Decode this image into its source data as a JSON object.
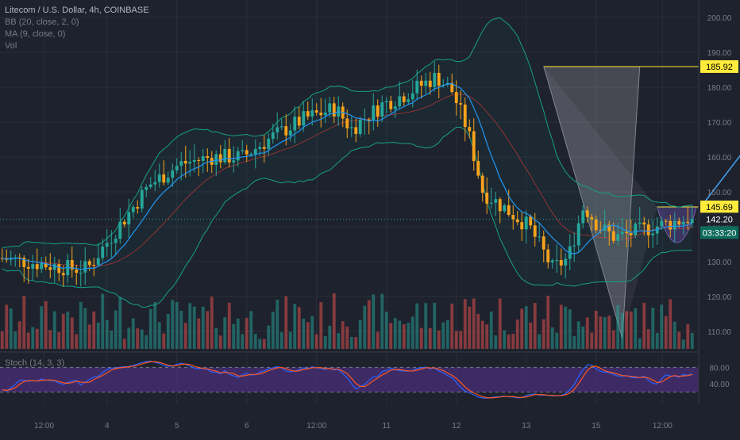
{
  "header": {
    "title": "Litecom / U.S. Dollar, 4h, COINBASE",
    "indicators": [
      "BB (20, close, 2, 0)",
      "MA (9, close, 0)",
      "Vol"
    ],
    "stoch_label": "Stoch (14, 3, 3)"
  },
  "colors": {
    "background": "#1e222d",
    "up": "#26a69a",
    "down": "#f7a21b",
    "bb": "#16a085",
    "ma": "#2196f3",
    "ema": "#e53935",
    "cup": "#5b3a8a",
    "yellow": "#ffeb3b",
    "stoch_k": "#2962ff",
    "stoch_d": "#ff5722",
    "stoch_bg": "#4a2f7a",
    "projection": "#42a5f5"
  },
  "chart_data": [
    {
      "type": "candlestick",
      "title": "Litecom / U.S. Dollar, 4h, COINBASE",
      "x_ticks": [
        {
          "i": 12,
          "label": "12:00"
        },
        {
          "i": 30,
          "label": "4"
        },
        {
          "i": 50,
          "label": "5"
        },
        {
          "i": 70,
          "label": "6"
        },
        {
          "i": 90,
          "label": "12:00"
        },
        {
          "i": 110,
          "label": "11"
        },
        {
          "i": 130,
          "label": "12"
        },
        {
          "i": 150,
          "label": "13"
        },
        {
          "i": 170,
          "label": "15"
        },
        {
          "i": 189,
          "label": "12:00"
        }
      ],
      "y_ticks": [
        {
          "v": 200,
          "label": "200.00"
        },
        {
          "v": 190,
          "label": "190.00"
        },
        {
          "v": 180,
          "label": "180.00"
        },
        {
          "v": 170,
          "label": "170.00"
        },
        {
          "v": 160,
          "label": "160.00"
        },
        {
          "v": 150,
          "label": "150.00"
        },
        {
          "v": 140,
          "label": "140.00"
        },
        {
          "v": 130,
          "label": "130.00"
        },
        {
          "v": 120,
          "label": "120.00"
        },
        {
          "v": 110,
          "label": "110.00"
        }
      ],
      "price_labels": [
        {
          "value": 185.92,
          "label": "185.92",
          "style": "yellow"
        },
        {
          "value": 145.69,
          "label": "145.69",
          "style": "yellow"
        },
        {
          "value": 142.2,
          "label": "142.20",
          "style": "green"
        }
      ],
      "countdown": "03:33:20",
      "ylim": [
        105,
        205
      ],
      "last_index": 158,
      "projection_target": 185.92
    },
    {
      "type": "line",
      "title": "Stoch (14, 3, 3)",
      "series": [],
      "y_ticks": [
        {
          "v": 80,
          "label": "80.00"
        },
        {
          "v": 40,
          "label": "40.00"
        }
      ],
      "ylim": [
        0,
        100
      ]
    }
  ]
}
